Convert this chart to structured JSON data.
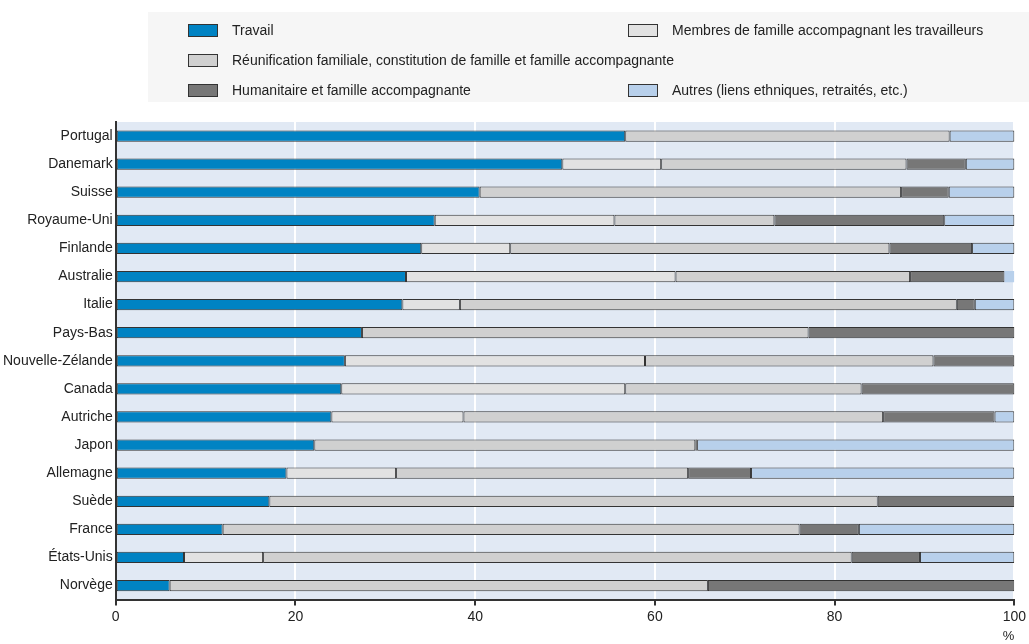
{
  "chart_data": {
    "type": "bar",
    "orientation": "horizontal",
    "stacked": true,
    "xlabel": "%",
    "categories": [
      "Portugal",
      "Danemark",
      "Suisse",
      "Royaume-Uni",
      "Finlande",
      "Australie",
      "Italie",
      "Pays-Bas",
      "Nouvelle-Zélande",
      "Canada",
      "Autriche",
      "Japon",
      "Allemagne",
      "Suède",
      "France",
      "États-Unis",
      "Norvège"
    ],
    "series": [
      {
        "name": "Travail",
        "color": "#0083c3",
        "values": [
          56.7,
          49.7,
          40.5,
          35.5,
          34.0,
          32.3,
          31.9,
          27.4,
          25.5,
          25.1,
          24.0,
          22.1,
          19.0,
          17.1,
          11.9,
          7.6,
          6.0
        ]
      },
      {
        "name": "Membres de famille accompagnant les travailleurs",
        "color": "#e2e2e2",
        "values": [
          0,
          11.0,
          0,
          20.0,
          9.9,
          30.0,
          6.4,
          0,
          33.4,
          31.6,
          14.7,
          0,
          12.2,
          0,
          0,
          8.8,
          0
        ]
      },
      {
        "name": "Réunification familiale, constitution de famille et famille accompagnante",
        "color": "#d0d0d0",
        "values": [
          36.1,
          27.3,
          46.9,
          17.8,
          42.2,
          26.1,
          55.3,
          49.7,
          32.1,
          26.3,
          46.7,
          42.4,
          32.5,
          67.7,
          64.2,
          65.5,
          59.9
        ]
      },
      {
        "name": "Humanitaire et famille accompagnante",
        "color": "#777777",
        "values": [
          0,
          6.6,
          5.3,
          18.9,
          9.2,
          10.5,
          2.0,
          22.9,
          9.0,
          17.0,
          12.4,
          0.2,
          7.0,
          15.2,
          6.6,
          7.6,
          34.1
        ]
      },
      {
        "name": "Autres (liens ethniques, retraités, etc.)",
        "color": "#b8d0eb",
        "values": [
          7.2,
          5.4,
          7.3,
          7.8,
          4.7,
          1.1,
          4.4,
          0,
          0,
          0,
          2.2,
          35.3,
          29.3,
          0,
          17.3,
          10.5,
          0
        ]
      }
    ],
    "xlim": [
      0,
      100
    ],
    "xticks": [
      0,
      20,
      40,
      60,
      80,
      100
    ],
    "grid": "x",
    "legend": "top"
  }
}
